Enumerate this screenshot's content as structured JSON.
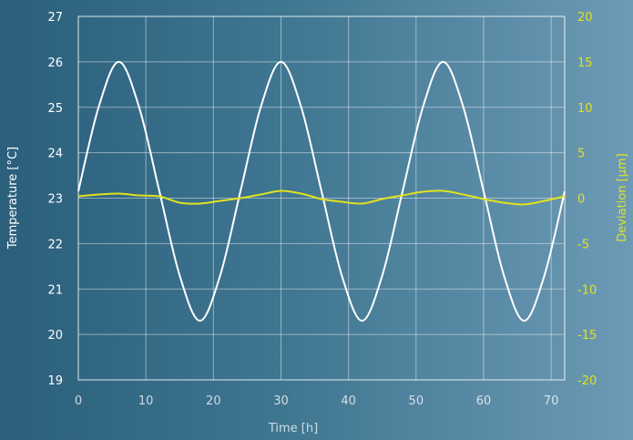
{
  "chart_data": {
    "type": "line",
    "xlabel": "Time [h]",
    "ylabel": "Temperature [°C]",
    "ylabel_right": "Deviation [µm]",
    "xlim": [
      0,
      72
    ],
    "ylim": [
      19,
      27
    ],
    "ylim_right": [
      -20,
      20
    ],
    "xticks": [
      "0",
      "10",
      "20",
      "30",
      "40",
      "50",
      "60",
      "70"
    ],
    "yticks": [
      "19",
      "20",
      "21",
      "22",
      "23",
      "24",
      "25",
      "26",
      "27"
    ],
    "yticks_right": [
      "-20",
      "-15",
      "-10",
      "-5",
      "0",
      "5",
      "10",
      "15",
      "20"
    ],
    "grid": true,
    "colors": {
      "temperature": "#ffffff",
      "deviation": "#e1e21f"
    },
    "series": [
      {
        "axis": "left",
        "x": [
          0,
          3,
          6,
          9,
          12,
          15,
          18,
          21,
          24,
          27,
          30,
          33,
          36,
          39,
          42,
          45,
          48,
          51,
          54,
          57,
          60,
          63,
          66,
          69,
          72
        ],
        "values": [
          23.15,
          25.0,
          26.0,
          25.0,
          23.15,
          21.3,
          20.3,
          21.3,
          23.15,
          25.0,
          26.0,
          25.0,
          23.15,
          21.3,
          20.3,
          21.3,
          23.15,
          25.0,
          26.0,
          25.0,
          23.15,
          21.3,
          20.3,
          21.3,
          23.15
        ]
      },
      {
        "axis": "right",
        "x": [
          0,
          3,
          6,
          9,
          12,
          15,
          18,
          21,
          24,
          27,
          30,
          33,
          36,
          39,
          42,
          45,
          48,
          51,
          54,
          57,
          60,
          63,
          66,
          69,
          72
        ],
        "values": [
          0.2,
          0.4,
          0.5,
          0.3,
          0.2,
          -0.5,
          -0.6,
          -0.3,
          0.0,
          0.4,
          0.8,
          0.5,
          -0.1,
          -0.4,
          -0.6,
          -0.1,
          0.3,
          0.7,
          0.8,
          0.4,
          -0.1,
          -0.5,
          -0.7,
          -0.3,
          0.2
        ]
      }
    ]
  }
}
